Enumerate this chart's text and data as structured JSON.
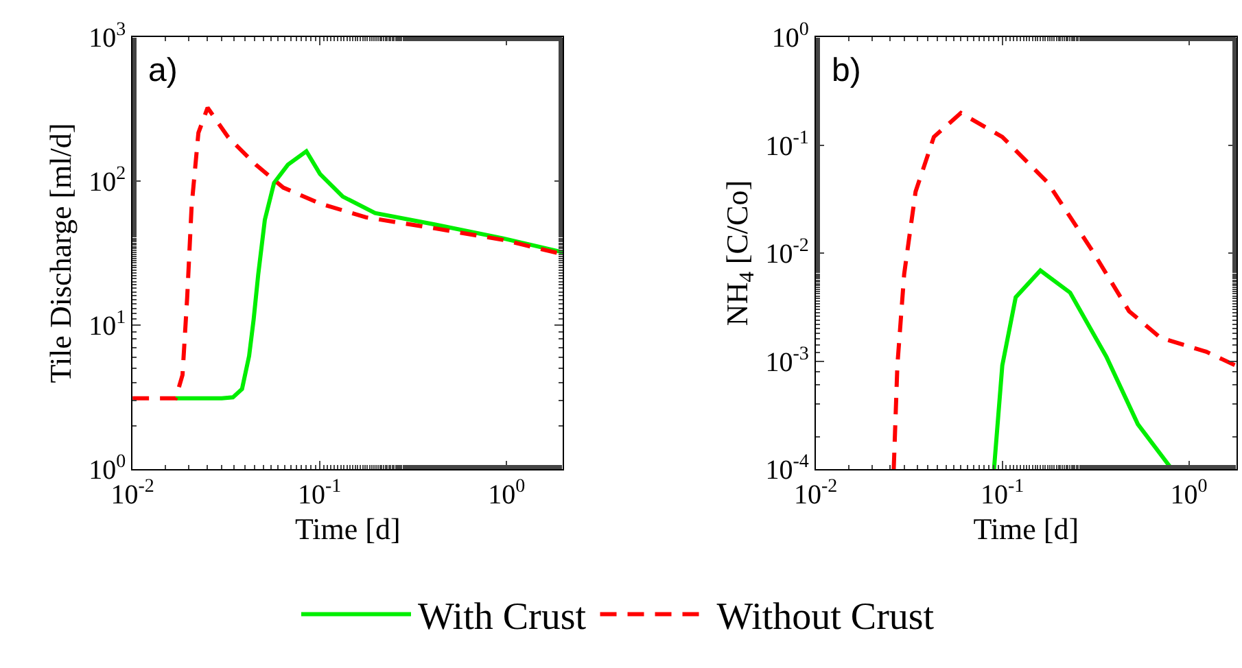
{
  "chart_data": [
    {
      "type": "line",
      "xlabel": "Time [d]",
      "ylabel": "Tile Discharge [ml/d]",
      "annotations": [
        "a)"
      ],
      "log": "xy",
      "grid": false,
      "legend": "bottom",
      "marker": "none",
      "xlim": [
        0.01,
        2
      ],
      "ylim": [
        1,
        1000
      ],
      "xticks": [
        {
          "value": 0.01,
          "label": "10$^{-2}$"
        },
        {
          "value": 0.1,
          "label": "10$^{-1}$"
        },
        {
          "value": 1,
          "label": "10$^{0}$"
        }
      ],
      "yticks": [
        {
          "value": 1,
          "label": "10$^{0}$"
        },
        {
          "value": 10,
          "label": "10$^{1}$"
        },
        {
          "value": 100,
          "label": "10$^{2}$"
        },
        {
          "value": 1000,
          "label": "10$^{3}$"
        }
      ],
      "series": [
        {
          "name": "With Crust",
          "color": "#00ee00",
          "line_style": "solid",
          "x": [
            0.017,
            0.02,
            0.03,
            0.0344,
            0.0385,
            0.042,
            0.0444,
            0.047,
            0.051,
            0.0571,
            0.0677,
            0.085,
            0.1005,
            0.133,
            0.198,
            0.412,
            0.96,
            2
          ],
          "values": [
            3.1,
            3.1,
            3.1,
            3.15,
            3.6,
            6.1,
            10.9,
            22.5,
            54,
            97,
            130,
            161,
            112,
            78,
            60,
            50,
            40,
            32
          ]
        },
        {
          "name": "Without Crust",
          "color": "#ff0000",
          "line_style": "dashed",
          "x": [
            0.01,
            0.017,
            0.0185,
            0.0196,
            0.0207,
            0.0225,
            0.0252,
            0.0325,
            0.0456,
            0.064,
            0.1,
            0.177,
            0.412,
            0.96,
            2
          ],
          "values": [
            3.1,
            3.1,
            4.5,
            15.6,
            67,
            216,
            323,
            201,
            130,
            90,
            70,
            56,
            47,
            39,
            31
          ]
        }
      ]
    },
    {
      "type": "line",
      "xlabel": "Time [d]",
      "ylabel": "NH$_{4}$ [C/Co]",
      "annotations": [
        "b)"
      ],
      "log": "xy",
      "grid": false,
      "marker": "none",
      "xlim": [
        0.01,
        1.8
      ],
      "ylim": [
        0.0001,
        1
      ],
      "xticks": [
        {
          "value": 0.01,
          "label": "10$^{-2}$"
        },
        {
          "value": 0.1,
          "label": "10$^{-1}$"
        },
        {
          "value": 1,
          "label": "10$^{0}$"
        }
      ],
      "yticks": [
        {
          "value": 0.0001,
          "label": "10$^{-4}$"
        },
        {
          "value": 0.001,
          "label": "10$^{-3}$"
        },
        {
          "value": 0.01,
          "label": "10$^{-2}$"
        },
        {
          "value": 0.1,
          "label": "10$^{-1}$"
        },
        {
          "value": 1,
          "label": "10$^{0}$"
        }
      ],
      "series": [
        {
          "color": "#00ee00",
          "line_style": "solid",
          "x": [
            0.0903,
            0.1,
            0.118,
            0.16,
            0.231,
            0.361,
            0.533,
            0.81
          ],
          "values": [
            0.0001,
            0.00091,
            0.0039,
            0.0069,
            0.0043,
            0.0011,
            0.00026,
            0.0001
          ]
        },
        {
          "color": "#ff0000",
          "line_style": "dashed",
          "x": [
            0.0262,
            0.0274,
            0.0298,
            0.0343,
            0.043,
            0.06,
            0.1,
            0.175,
            0.305,
            0.478,
            0.706,
            1.24,
            1.78
          ],
          "values": [
            0.0001,
            0.00091,
            0.0064,
            0.037,
            0.119,
            0.198,
            0.119,
            0.045,
            0.0104,
            0.0029,
            0.00164,
            0.00122,
            0.00091
          ]
        }
      ]
    }
  ]
}
